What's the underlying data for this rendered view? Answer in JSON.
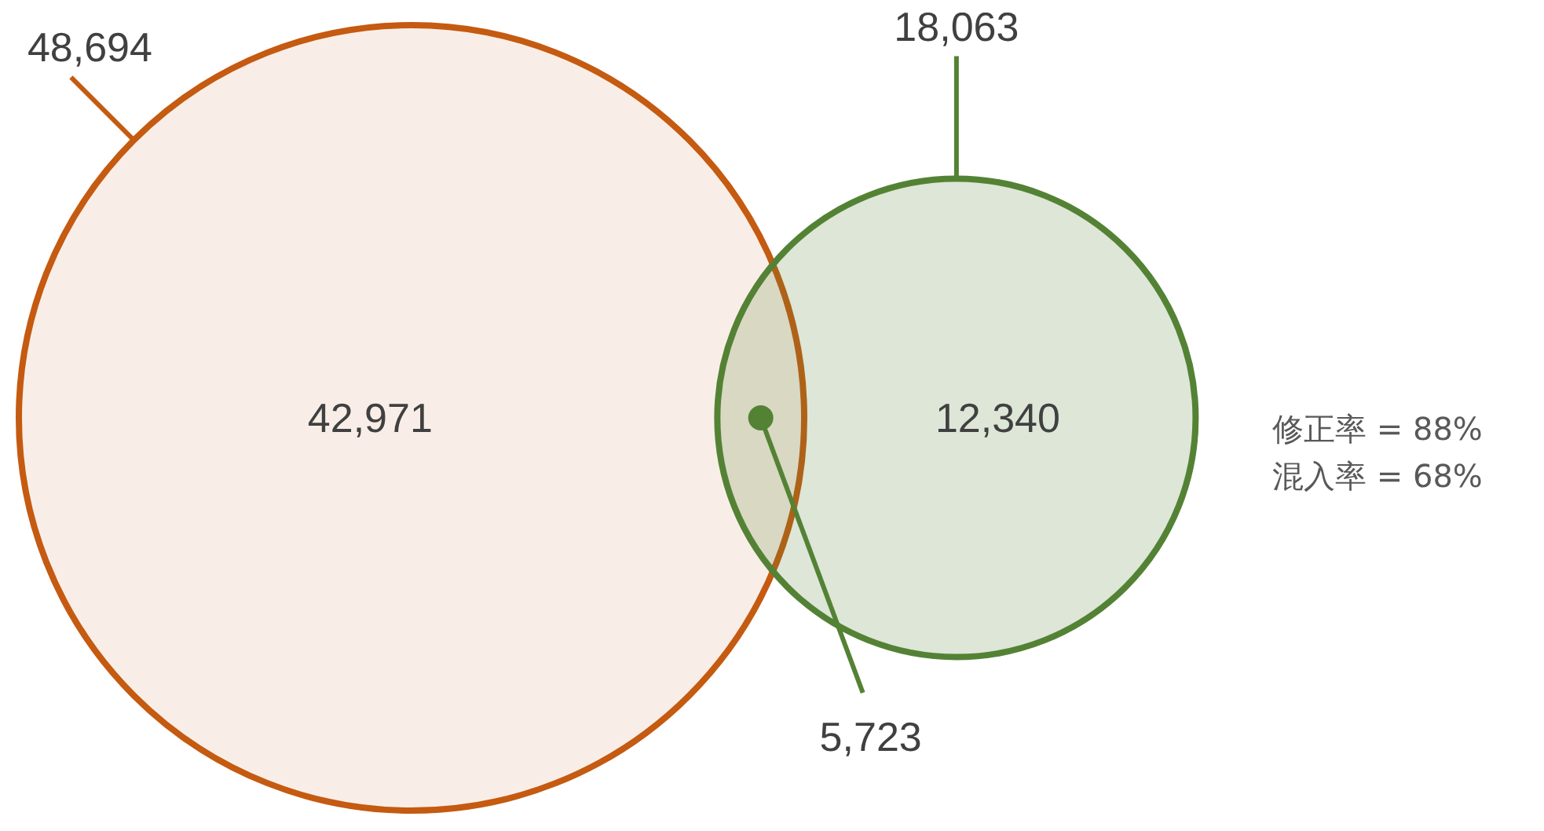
{
  "chart_data": {
    "type": "other",
    "categories": [
      null,
      null,
      null,
      null,
      null
    ],
    "values": [
      48694,
      18063,
      42971,
      12340,
      5723
    ],
    "value_labels": [
      "48,694",
      "18,063",
      "42,971",
      "12,340",
      "5,723"
    ],
    "data_labels": true,
    "colors": [
      "#c55a11",
      "#548235",
      "#c55a11",
      "#548235",
      "#548235"
    ],
    "annotations": [
      "修正率 = 88%",
      "混入率 = 68%"
    ]
  }
}
